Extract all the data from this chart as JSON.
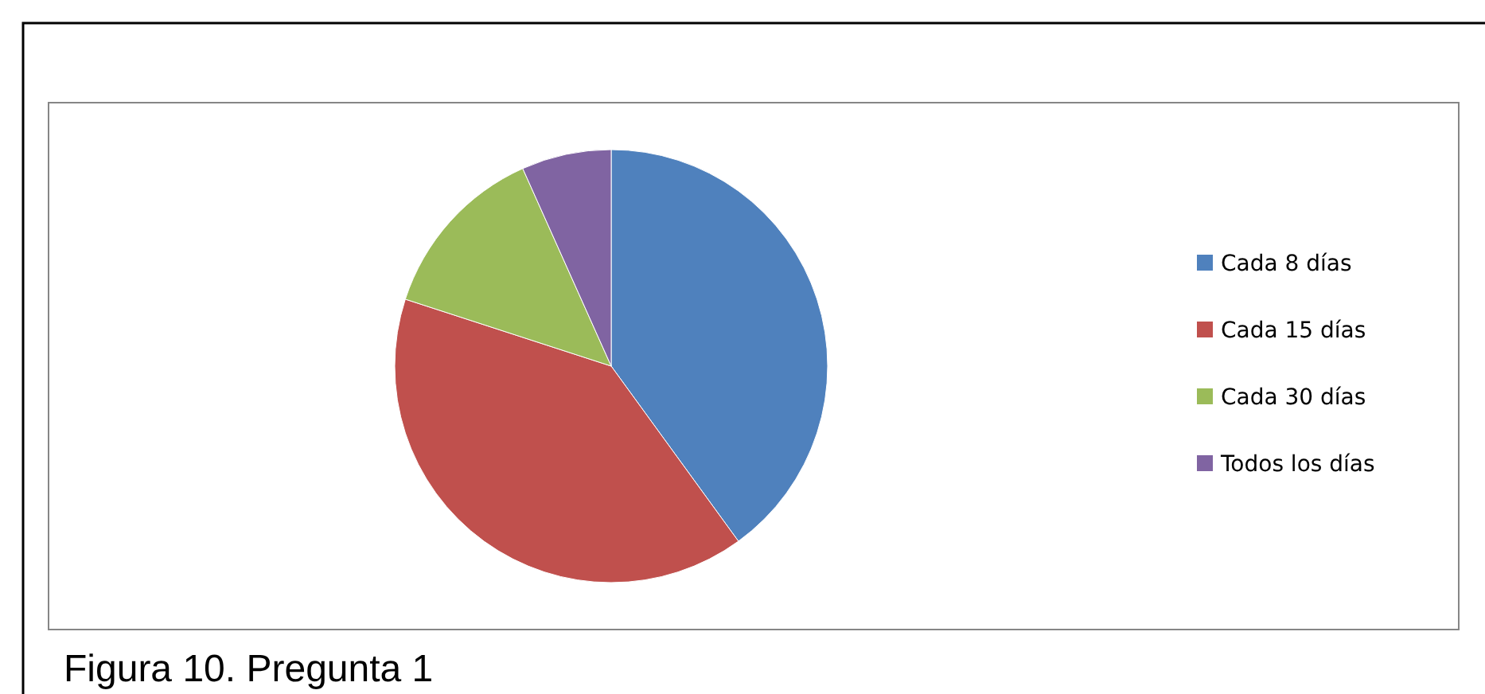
{
  "chart_data": {
    "type": "pie",
    "categories": [
      "Cada 8 días",
      "Cada 15 días",
      "Cada 30 días",
      "Todos los días"
    ],
    "values": [
      40,
      40,
      13.3,
      6.7
    ],
    "colors": [
      "#4f81bd",
      "#c0504d",
      "#9bbb59",
      "#8064a2"
    ],
    "legend": "right",
    "annotations": [
      "Figura 10. Pregunta 1"
    ]
  }
}
